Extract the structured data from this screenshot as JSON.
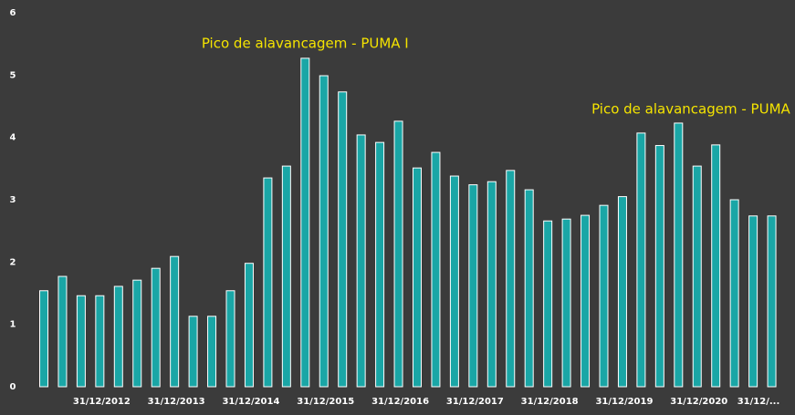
{
  "chart_data": {
    "type": "bar",
    "categories": [
      null,
      null,
      null,
      "31/12/2012",
      null,
      null,
      null,
      "31/12/2013",
      null,
      null,
      null,
      "31/12/2014",
      null,
      null,
      null,
      "31/12/2015",
      null,
      null,
      null,
      "31/12/2016",
      null,
      null,
      null,
      "31/12/2017",
      null,
      null,
      null,
      "31/12/2018",
      null,
      null,
      null,
      "31/12/2019",
      null,
      null,
      null,
      "31/12/2020",
      null,
      null,
      null,
      "31/12/..."
    ],
    "values": [
      1.54,
      1.77,
      1.46,
      1.46,
      1.61,
      1.71,
      1.9,
      2.09,
      1.13,
      1.13,
      1.54,
      1.98,
      3.35,
      3.54,
      5.27,
      4.99,
      4.73,
      4.04,
      3.92,
      4.26,
      3.51,
      3.76,
      3.38,
      3.24,
      3.29,
      3.47,
      3.16,
      2.66,
      2.69,
      2.75,
      2.91,
      3.05,
      4.07,
      3.87,
      4.23,
      3.54,
      3.88,
      3.0,
      2.74,
      2.74
    ],
    "color": "#1aa6a6",
    "ylim": [
      0,
      6
    ],
    "yticks": [
      0,
      1,
      2,
      3,
      4,
      5,
      6
    ],
    "grid": false,
    "annotations": [
      {
        "text": "Pico de alavancagem - PUMA I",
        "x": 14,
        "y": 5.5
      },
      {
        "text": "Pico de alavancagem - PUMA II",
        "x": 35,
        "y": 4.45
      }
    ]
  }
}
